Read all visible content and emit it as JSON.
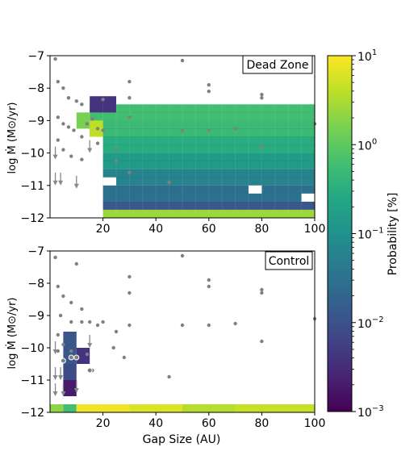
{
  "chart_data": {
    "type": "heatmap",
    "xlabel": "Gap Size (AU)",
    "ylabel": "log Ṁ (M⊙/yr)",
    "xlim": [
      0,
      100
    ],
    "ylim": [
      -12,
      -7
    ],
    "x_ticks": [
      20,
      40,
      60,
      80,
      100
    ],
    "y_ticks": [
      -12,
      -11,
      -10,
      -9,
      -8,
      -7
    ],
    "colorbar": {
      "label": "Probability [%]",
      "scale": "log",
      "range": [
        0.001,
        10
      ],
      "ticks": [
        {
          "base": "10",
          "exp": "−3",
          "value": 0.001
        },
        {
          "base": "10",
          "exp": "−2",
          "value": 0.01
        },
        {
          "base": "10",
          "exp": "−1",
          "value": 0.1
        },
        {
          "base": "10",
          "exp": "0",
          "value": 1
        },
        {
          "base": "10",
          "exp": "1",
          "value": 10
        }
      ]
    },
    "panels": [
      {
        "name": "Dead Zone",
        "cells": [
          {
            "x": [
              15,
              100
            ],
            "y": [
              -9.0,
              -8.5
            ],
            "v": 0.6
          },
          {
            "x": [
              15,
              100
            ],
            "y": [
              -9.5,
              -9.0
            ],
            "v": 0.5
          },
          {
            "x": [
              20,
              100
            ],
            "y": [
              -10.0,
              -9.5
            ],
            "v": 0.3
          },
          {
            "x": [
              20,
              100
            ],
            "y": [
              -10.5,
              -10.0
            ],
            "v": 0.15
          },
          {
            "x": [
              20,
              100
            ],
            "y": [
              -11.0,
              -10.5
            ],
            "v": 0.06
          },
          {
            "x": [
              20,
              100
            ],
            "y": [
              -11.5,
              -11.0
            ],
            "v": 0.03
          },
          {
            "x": [
              20,
              100
            ],
            "y": [
              -11.75,
              -11.5
            ],
            "v": 0.012
          },
          {
            "x": [
              20,
              100
            ],
            "y": [
              -12.0,
              -11.75
            ],
            "v": 2.5
          },
          {
            "x": [
              10,
              15
            ],
            "y": [
              -9.25,
              -8.75
            ],
            "v": 1.5
          },
          {
            "x": [
              15,
              20
            ],
            "y": [
              -9.5,
              -9.0
            ],
            "v": 4.0
          },
          {
            "x": [
              15,
              25
            ],
            "y": [
              -8.75,
              -8.25
            ],
            "v": 0.004
          }
        ],
        "gaps": [
          {
            "x": [
              55,
              90
            ],
            "y": [
              -8.5,
              -7.0
            ]
          },
          {
            "x": [
              20,
              25
            ],
            "y": [
              -11.0,
              -10.75
            ]
          },
          {
            "x": [
              75,
              80
            ],
            "y": [
              -11.25,
              -11.0
            ]
          },
          {
            "x": [
              95,
              100
            ],
            "y": [
              -11.5,
              -11.25
            ]
          }
        ],
        "points_filled": [
          [
            50,
            -7.15
          ],
          [
            30,
            -7.8
          ],
          [
            60,
            -7.9
          ],
          [
            60,
            -8.1
          ],
          [
            80,
            -8.2
          ],
          [
            80,
            -8.3
          ],
          [
            30,
            -8.3
          ],
          [
            20,
            -8.35
          ],
          [
            30,
            -8.9
          ],
          [
            16,
            -8.95
          ],
          [
            18,
            -9.25
          ],
          [
            20,
            -9.3
          ],
          [
            50,
            -9.3
          ],
          [
            60,
            -9.3
          ],
          [
            70,
            -9.25
          ],
          [
            100,
            -9.1
          ],
          [
            80,
            -9.8
          ],
          [
            25,
            -9.9
          ],
          [
            25,
            -10.25
          ],
          [
            30,
            -10.6
          ],
          [
            45,
            -10.9
          ],
          [
            2,
            -7.1
          ],
          [
            3,
            -7.8
          ],
          [
            5,
            -8.0
          ],
          [
            7,
            -8.3
          ],
          [
            10,
            -8.4
          ],
          [
            12,
            -8.5
          ],
          [
            3,
            -8.9
          ],
          [
            5,
            -9.1
          ],
          [
            7,
            -9.2
          ],
          [
            9,
            -9.3
          ],
          [
            12,
            -9.5
          ],
          [
            3,
            -9.6
          ],
          [
            5,
            -9.9
          ],
          [
            8,
            -10.1
          ],
          [
            12,
            -10.2
          ],
          [
            14,
            -9.1
          ],
          [
            18,
            -9.7
          ]
        ],
        "upper_limits": [
          [
            2,
            -10.0
          ],
          [
            2,
            -10.8
          ],
          [
            4,
            -10.8
          ],
          [
            10,
            -10.9
          ],
          [
            15,
            -9.8
          ]
        ]
      },
      {
        "name": "Control",
        "cells": [
          {
            "x": [
              5,
              10
            ],
            "y": [
              -10.5,
              -9.5
            ],
            "v": 0.012
          },
          {
            "x": [
              5,
              10
            ],
            "y": [
              -11.0,
              -10.5
            ],
            "v": 0.008
          },
          {
            "x": [
              10,
              15
            ],
            "y": [
              -10.5,
              -10.0
            ],
            "v": 0.004
          },
          {
            "x": [
              5,
              10
            ],
            "y": [
              -11.5,
              -11.0
            ],
            "v": 0.002
          },
          {
            "x": [
              0,
              5
            ],
            "y": [
              -12.0,
              -11.75
            ],
            "v": 2.0
          },
          {
            "x": [
              5,
              10
            ],
            "y": [
              -12.0,
              -11.75
            ],
            "v": 0.6
          },
          {
            "x": [
              10,
              30
            ],
            "y": [
              -12.0,
              -11.75
            ],
            "v": 8.0
          },
          {
            "x": [
              30,
              50
            ],
            "y": [
              -12.0,
              -11.75
            ],
            "v": 6.0
          },
          {
            "x": [
              50,
              70
            ],
            "y": [
              -12.0,
              -11.75
            ],
            "v": 3.5
          },
          {
            "x": [
              70,
              100
            ],
            "y": [
              -12.0,
              -11.75
            ],
            "v": 4.5
          }
        ],
        "gaps": [],
        "points_filled": [
          [
            50,
            -7.15
          ],
          [
            2,
            -7.2
          ],
          [
            10,
            -7.4
          ],
          [
            30,
            -7.8
          ],
          [
            60,
            -7.9
          ],
          [
            60,
            -8.1
          ],
          [
            80,
            -8.2
          ],
          [
            80,
            -8.3
          ],
          [
            30,
            -8.3
          ],
          [
            3,
            -8.1
          ],
          [
            5,
            -8.4
          ],
          [
            8,
            -8.6
          ],
          [
            12,
            -8.8
          ],
          [
            4,
            -9.0
          ],
          [
            8,
            -9.2
          ],
          [
            12,
            -9.2
          ],
          [
            15,
            -9.2
          ],
          [
            18,
            -9.3
          ],
          [
            20,
            -9.2
          ],
          [
            30,
            -9.3
          ],
          [
            50,
            -9.3
          ],
          [
            60,
            -9.3
          ],
          [
            70,
            -9.25
          ],
          [
            100,
            -9.1
          ],
          [
            80,
            -9.8
          ],
          [
            25,
            -9.5
          ],
          [
            24,
            -10.0
          ],
          [
            28,
            -10.3
          ],
          [
            45,
            -10.9
          ],
          [
            3,
            -9.6
          ],
          [
            5,
            -9.9
          ],
          [
            8,
            -10.1
          ],
          [
            10,
            -10.3
          ],
          [
            16,
            -10.7
          ],
          [
            3,
            -10.1
          ],
          [
            14,
            -10.2
          ]
        ],
        "points_open": [
          [
            8,
            -10.3
          ],
          [
            10,
            -10.3
          ],
          [
            15,
            -10.7
          ],
          [
            5,
            -10.4
          ]
        ],
        "upper_limits": [
          [
            2,
            -10.0
          ],
          [
            2,
            -10.8
          ],
          [
            4,
            -10.8
          ],
          [
            10,
            -11.2
          ],
          [
            15,
            -9.8
          ],
          [
            2,
            -11.3
          ],
          [
            5,
            -11.3
          ]
        ]
      }
    ]
  }
}
